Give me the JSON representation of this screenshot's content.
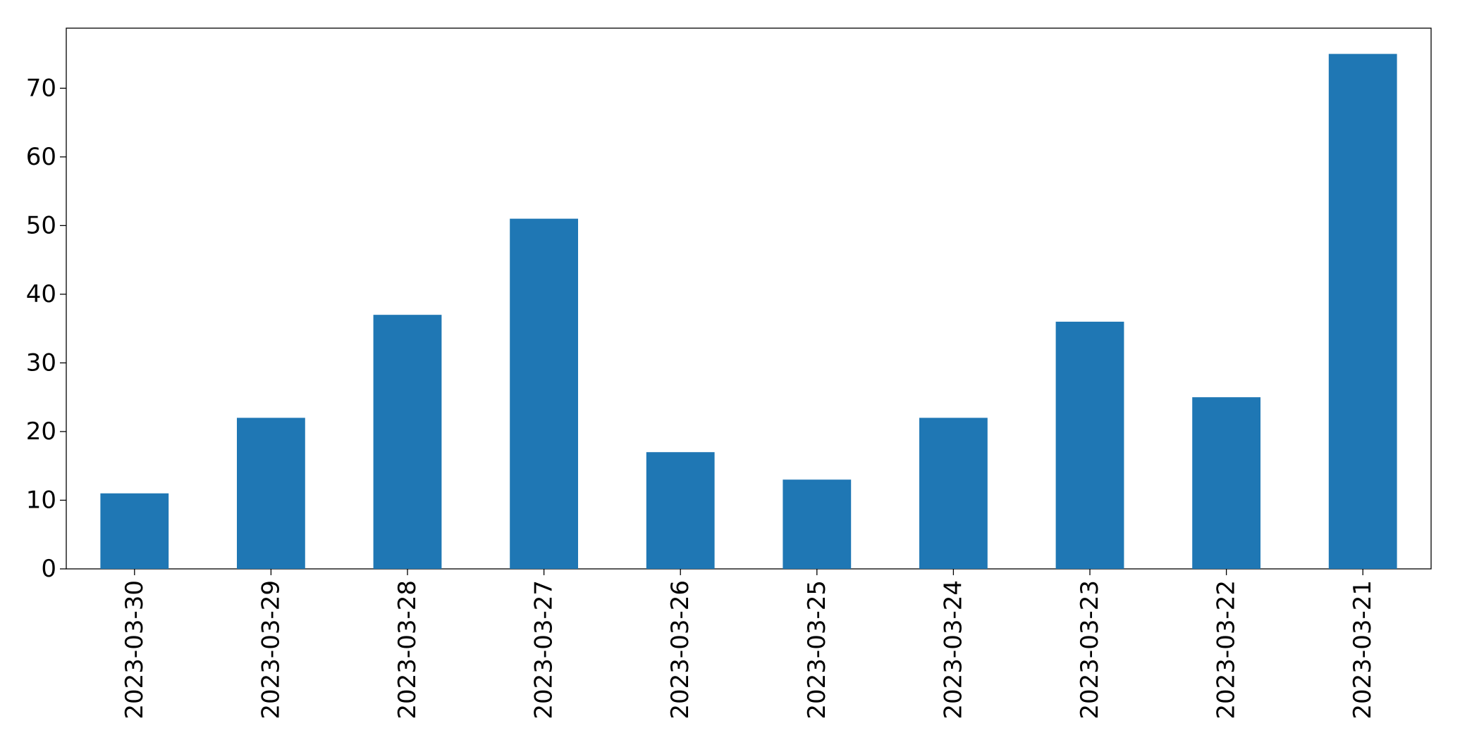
{
  "chart_data": {
    "type": "bar",
    "categories": [
      "2023-03-30",
      "2023-03-29",
      "2023-03-28",
      "2023-03-27",
      "2023-03-26",
      "2023-03-25",
      "2023-03-24",
      "2023-03-23",
      "2023-03-22",
      "2023-03-21"
    ],
    "values": [
      11,
      22,
      37,
      51,
      17,
      13,
      22,
      36,
      25,
      75
    ],
    "color": "#1f77b4",
    "ylim": [
      0,
      78.75
    ],
    "yticks": [
      0,
      10,
      20,
      30,
      40,
      50,
      60,
      70
    ],
    "grid": false
  }
}
